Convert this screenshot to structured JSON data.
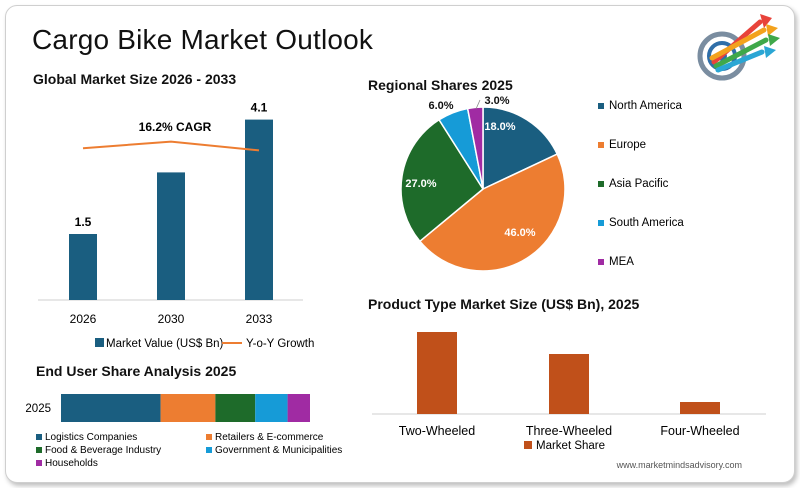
{
  "page": {
    "title": "Cargo Bike Market Outlook",
    "footer": "www.marketmindsadvisory.com"
  },
  "colors": {
    "dark_blue": "#1a5e80",
    "orange": "#ed7d31",
    "green": "#1e6b2a",
    "light_blue": "#169bd7",
    "purple": "#a02ba3",
    "rust": "#c0501a"
  },
  "chart_data": [
    {
      "id": "global",
      "type": "bar",
      "title": "Global Market Size 2026 - 2033",
      "categories": [
        "2026",
        "2030",
        "2033"
      ],
      "values": [
        1.5,
        2.9,
        4.1
      ],
      "data_labels": [
        "1.5",
        "",
        "4.1"
      ],
      "series": [
        {
          "name": "Market Value (US$ Bn)",
          "type": "bar",
          "values": [
            1.5,
            2.9,
            4.1
          ]
        },
        {
          "name": "Y-o-Y Growth",
          "type": "line",
          "values": [
            3.45,
            3.6,
            3.4
          ]
        }
      ],
      "annotation": "16.2% CAGR",
      "ylim": [
        0,
        4.5
      ],
      "legend": "bottom"
    },
    {
      "id": "regional",
      "type": "pie",
      "title": "Regional Shares 2025",
      "labels": [
        "North America",
        "Europe",
        "Asia Pacific",
        "South America",
        "MEA"
      ],
      "values": [
        18.0,
        46.0,
        27.0,
        6.0,
        3.0
      ],
      "value_labels": [
        "18.0%",
        "46.0%",
        "27.0%",
        "6.0%",
        "3.0%"
      ],
      "legend": "right"
    },
    {
      "id": "end_user",
      "type": "bar",
      "title": "End User Share Analysis 2025",
      "categories": [
        "2025"
      ],
      "stacked": true,
      "orientation": "horizontal",
      "series": [
        {
          "name": "Logistics Companies",
          "values": [
            40
          ]
        },
        {
          "name": "Retailers & E-commerce",
          "values": [
            22
          ]
        },
        {
          "name": "Food & Beverage Industry",
          "values": [
            16
          ]
        },
        {
          "name": "Government & Municipalities",
          "values": [
            13
          ]
        },
        {
          "name": "Households",
          "values": [
            9
          ]
        }
      ],
      "legend": "bottom"
    },
    {
      "id": "product",
      "type": "bar",
      "title": "Product Type Market Size (US$ Bn), 2025",
      "categories": [
        "Two-Wheeled",
        "Three-Wheeled",
        "Four-Wheeled"
      ],
      "series": [
        {
          "name": "Market Share",
          "values": [
            0.82,
            0.6,
            0.12
          ]
        }
      ],
      "ylim": [
        0,
        1.0
      ],
      "legend": "bottom"
    }
  ]
}
